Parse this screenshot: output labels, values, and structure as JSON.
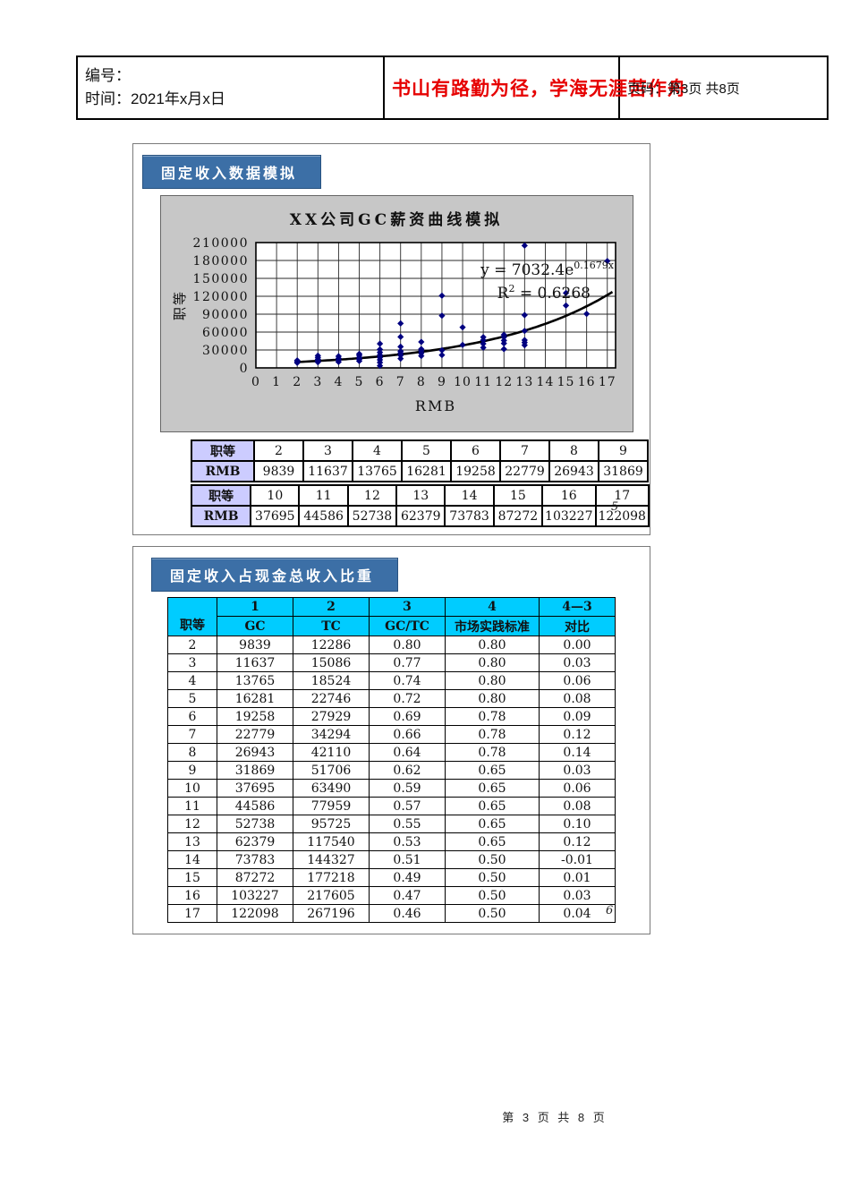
{
  "header": {
    "number_label": "编号：",
    "date_label": "时间：2021年x月x日",
    "motto": "书山有路勤为径，学海无涯苦作舟",
    "page_label": "页码：第3页 共8页"
  },
  "panel_fixed_income": {
    "title": "固定收入数据模拟",
    "slide_number": "5",
    "grade_table_1": {
      "row1_label": "职等",
      "row2_label": "RMB",
      "grades": [
        "2",
        "3",
        "4",
        "5",
        "6",
        "7",
        "8",
        "9"
      ],
      "values": [
        "9839",
        "11637",
        "13765",
        "16281",
        "19258",
        "22779",
        "26943",
        "31869"
      ]
    },
    "grade_table_2": {
      "row1_label": "职等",
      "row2_label": "RMB",
      "grades": [
        "10",
        "11",
        "12",
        "13",
        "14",
        "15",
        "16",
        "17"
      ],
      "values": [
        "37695",
        "44586",
        "52738",
        "62379",
        "73783",
        "87272",
        "103227",
        "122098"
      ]
    }
  },
  "chart_data": {
    "type": "scatter",
    "title": "XX公司GC薪资曲线模拟",
    "xlabel": "RMB",
    "ylabel": "职等",
    "xlim": [
      0,
      17.4
    ],
    "ylim": [
      0,
      210000
    ],
    "x_ticks": [
      0,
      1,
      2,
      3,
      4,
      5,
      6,
      7,
      8,
      9,
      10,
      11,
      12,
      13,
      14,
      15,
      16,
      17
    ],
    "y_ticks": [
      0,
      30000,
      60000,
      90000,
      120000,
      150000,
      180000,
      210000
    ],
    "grid": true,
    "legend": "none",
    "annotations": {
      "eq_base": "y = 7032.4e",
      "eq_exponent": "0.1679x",
      "r2_base": "R",
      "r2_sup": "2",
      "r2_rest": " = 0.6268"
    },
    "series": [
      {
        "name": "observed-salary-points",
        "type": "scatter",
        "color": "#000080",
        "points": [
          [
            2,
            8500
          ],
          [
            2,
            10500
          ],
          [
            2,
            12500
          ],
          [
            3,
            9500
          ],
          [
            3,
            12000
          ],
          [
            3,
            14500
          ],
          [
            3,
            17500
          ],
          [
            3,
            20500
          ],
          [
            4,
            10000
          ],
          [
            4,
            13000
          ],
          [
            4,
            16000
          ],
          [
            4,
            19500
          ],
          [
            5,
            11500
          ],
          [
            5,
            14500
          ],
          [
            5,
            17500
          ],
          [
            5,
            21000
          ],
          [
            5,
            23500
          ],
          [
            6,
            3500
          ],
          [
            6,
            9000
          ],
          [
            6,
            13500
          ],
          [
            6,
            17500
          ],
          [
            6,
            21500
          ],
          [
            6,
            26000
          ],
          [
            6,
            31000
          ],
          [
            6,
            40500
          ],
          [
            7,
            15500
          ],
          [
            7,
            21000
          ],
          [
            7,
            25000
          ],
          [
            7,
            28000
          ],
          [
            7,
            35500
          ],
          [
            7,
            52000
          ],
          [
            7,
            74500
          ],
          [
            8,
            20000
          ],
          [
            8,
            24500
          ],
          [
            8,
            28500
          ],
          [
            8,
            31500
          ],
          [
            8,
            43500
          ],
          [
            9,
            21500
          ],
          [
            9,
            29500
          ],
          [
            9,
            87500
          ],
          [
            9,
            121000
          ],
          [
            10,
            38500
          ],
          [
            10,
            68000
          ],
          [
            11,
            34000
          ],
          [
            11,
            40500
          ],
          [
            11,
            46500
          ],
          [
            11,
            51500
          ],
          [
            12,
            31500
          ],
          [
            12,
            41000
          ],
          [
            12,
            46000
          ],
          [
            12,
            51500
          ],
          [
            12,
            55500
          ],
          [
            13,
            38000
          ],
          [
            13,
            42500
          ],
          [
            13,
            46500
          ],
          [
            13,
            62000
          ],
          [
            13,
            88500
          ],
          [
            13,
            205000
          ],
          [
            15,
            104500
          ],
          [
            15,
            125500
          ],
          [
            16,
            90500
          ],
          [
            17,
            179000
          ]
        ]
      },
      {
        "name": "exponential-fit",
        "type": "curve",
        "color": "#000000",
        "a": 7032.4,
        "b": 0.1679,
        "x_range": [
          1.95,
          17.35
        ]
      }
    ]
  },
  "panel_ratio": {
    "title": "固定收入占现金总收入比重",
    "slide_number": "6",
    "table": {
      "corner_label": "职等",
      "col_numbers": [
        "1",
        "2",
        "3",
        "4",
        "4—3"
      ],
      "col_names": [
        "GC",
        "TC",
        "GC/TC",
        "市场实践标准",
        "对比"
      ],
      "rows": [
        [
          "2",
          "9839",
          "12286",
          "0.80",
          "0.80",
          "0.00"
        ],
        [
          "3",
          "11637",
          "15086",
          "0.77",
          "0.80",
          "0.03"
        ],
        [
          "4",
          "13765",
          "18524",
          "0.74",
          "0.80",
          "0.06"
        ],
        [
          "5",
          "16281",
          "22746",
          "0.72",
          "0.80",
          "0.08"
        ],
        [
          "6",
          "19258",
          "27929",
          "0.69",
          "0.78",
          "0.09"
        ],
        [
          "7",
          "22779",
          "34294",
          "0.66",
          "0.78",
          "0.12"
        ],
        [
          "8",
          "26943",
          "42110",
          "0.64",
          "0.78",
          "0.14"
        ],
        [
          "9",
          "31869",
          "51706",
          "0.62",
          "0.65",
          "0.03"
        ],
        [
          "10",
          "37695",
          "63490",
          "0.59",
          "0.65",
          "0.06"
        ],
        [
          "11",
          "44586",
          "77959",
          "0.57",
          "0.65",
          "0.08"
        ],
        [
          "12",
          "52738",
          "95725",
          "0.55",
          "0.65",
          "0.10"
        ],
        [
          "13",
          "62379",
          "117540",
          "0.53",
          "0.65",
          "0.12"
        ],
        [
          "14",
          "73783",
          "144327",
          "0.51",
          "0.50",
          "-0.01"
        ],
        [
          "15",
          "87272",
          "177218",
          "0.49",
          "0.50",
          "0.01"
        ],
        [
          "16",
          "103227",
          "217605",
          "0.47",
          "0.50",
          "0.03"
        ],
        [
          "17",
          "122098",
          "267196",
          "0.46",
          "0.50",
          "0.04"
        ]
      ]
    }
  },
  "footer": {
    "page_text": "第 3 页 共 8 页"
  },
  "colors": {
    "accent_blue": "#3c6fa6",
    "table_header_cyan": "#00ccff",
    "table_label_lavender": "#ccccff",
    "scatter_navy": "#000080",
    "motto_red": "#e60000",
    "chart_background_gray": "#c7c7c7"
  }
}
